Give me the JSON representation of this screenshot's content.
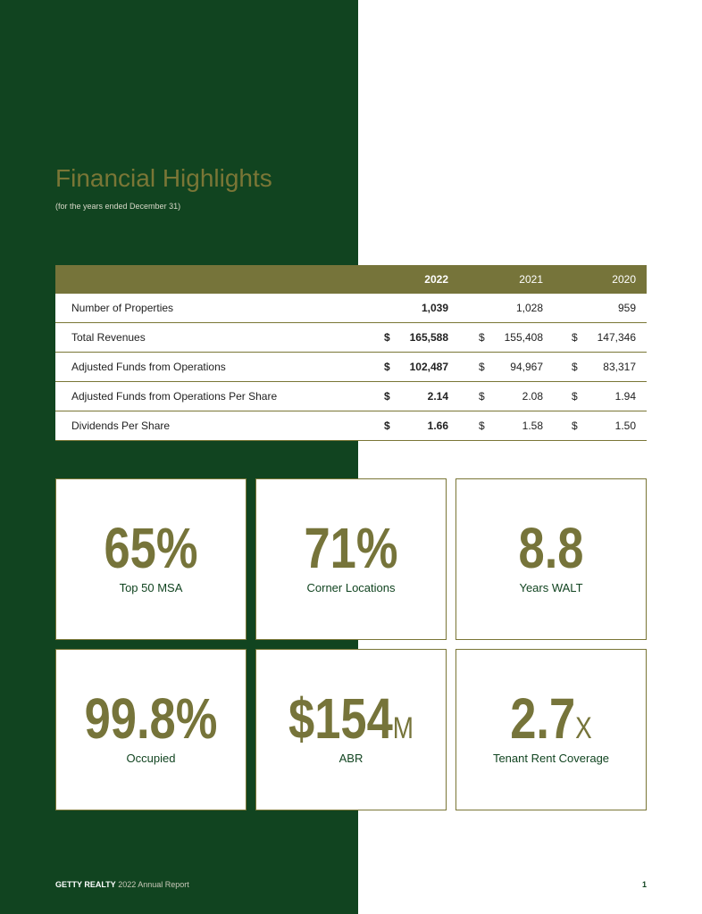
{
  "header": {
    "title": "Financial Highlights",
    "subtitle": "(for the years ended December 31)"
  },
  "table": {
    "columns": [
      "2022",
      "2021",
      "2020"
    ],
    "rows": [
      {
        "label": "Number of Properties",
        "cells": [
          {
            "value": "1,039"
          },
          {
            "value": "1,028"
          },
          {
            "value": "959"
          }
        ]
      },
      {
        "label": "Total Revenues",
        "cells": [
          {
            "currency": "$",
            "value": "165,588"
          },
          {
            "currency": "$",
            "value": "155,408"
          },
          {
            "currency": "$",
            "value": "147,346"
          }
        ]
      },
      {
        "label": "Adjusted Funds from Operations",
        "cells": [
          {
            "currency": "$",
            "value": "102,487"
          },
          {
            "currency": "$",
            "value": "94,967"
          },
          {
            "currency": "$",
            "value": "83,317"
          }
        ]
      },
      {
        "label": "Adjusted Funds from Operations Per Share",
        "cells": [
          {
            "currency": "$",
            "value": "2.14"
          },
          {
            "currency": "$",
            "value": "2.08"
          },
          {
            "currency": "$",
            "value": "1.94"
          }
        ]
      },
      {
        "label": "Dividends Per Share",
        "cells": [
          {
            "currency": "$",
            "value": "1.66"
          },
          {
            "currency": "$",
            "value": "1.58"
          },
          {
            "currency": "$",
            "value": "1.50"
          }
        ]
      }
    ]
  },
  "cards": [
    {
      "value": "65%",
      "label": "Top 50 MSA"
    },
    {
      "value": "71%",
      "label": "Corner Locations"
    },
    {
      "value": "8.8",
      "label": "Years WALT"
    },
    {
      "value": "99.8%",
      "label": "Occupied"
    },
    {
      "value": "$154",
      "suffix": "M",
      "label": "ABR"
    },
    {
      "value": "2.7",
      "suffix": "X",
      "label": "Tenant Rent Coverage"
    }
  ],
  "footer": {
    "brand": "GETTY REALTY",
    "text": "2022 Annual Report",
    "page": "1"
  }
}
